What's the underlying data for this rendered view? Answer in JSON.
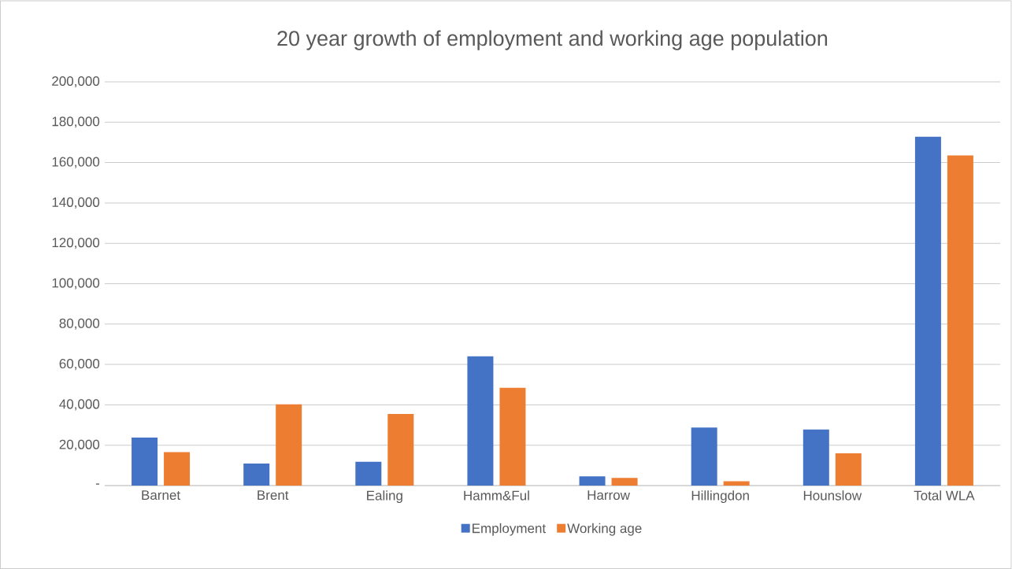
{
  "chart_data": {
    "type": "bar",
    "title": "20 year growth of employment and working age population",
    "categories": [
      "Barnet",
      "Brent",
      "Ealing",
      "Hamm&Ful",
      "Harrow",
      "Hillingdon",
      "Hounslow",
      "Total WLA"
    ],
    "series": [
      {
        "name": "Employment",
        "color": "#4472c4",
        "values": [
          23800,
          10900,
          11800,
          64000,
          4600,
          28800,
          27800,
          172800
        ]
      },
      {
        "name": "Working age",
        "color": "#ed7d31",
        "values": [
          16600,
          40300,
          35500,
          48400,
          3800,
          2100,
          16000,
          163500
        ]
      }
    ],
    "ylim": [
      0,
      200000
    ],
    "yticks": [
      {
        "value": 0,
        "label": "-"
      },
      {
        "value": 20000,
        "label": "20,000"
      },
      {
        "value": 40000,
        "label": "40,000"
      },
      {
        "value": 60000,
        "label": "60,000"
      },
      {
        "value": 80000,
        "label": "80,000"
      },
      {
        "value": 100000,
        "label": "100,000"
      },
      {
        "value": 120000,
        "label": "120,000"
      },
      {
        "value": 140000,
        "label": "140,000"
      },
      {
        "value": 160000,
        "label": "160,000"
      },
      {
        "value": 180000,
        "label": "180,000"
      },
      {
        "value": 200000,
        "label": "200,000"
      }
    ],
    "grid": "y",
    "legend": "bottom"
  }
}
